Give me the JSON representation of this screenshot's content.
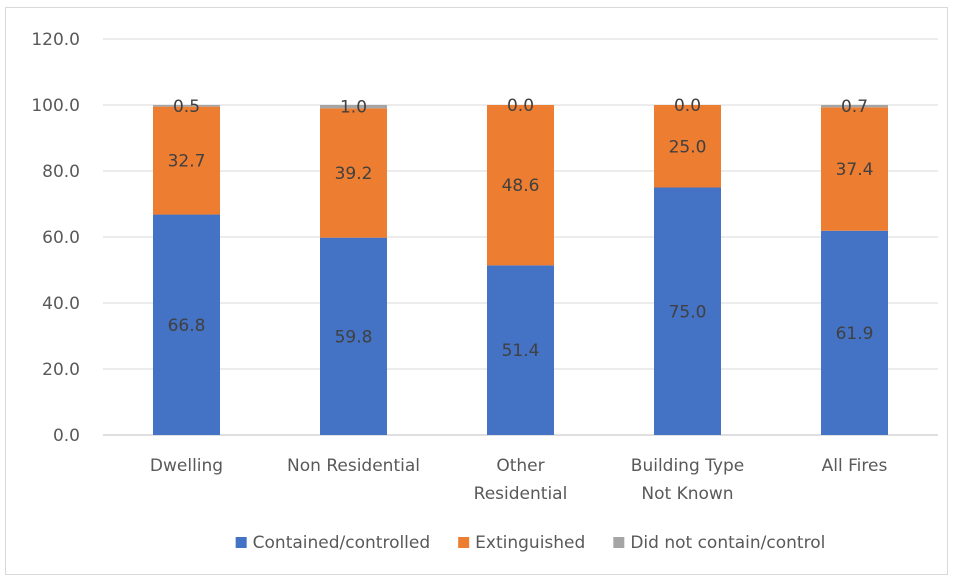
{
  "chart_data": {
    "type": "bar",
    "stacked": true,
    "categories": [
      [
        "Dwelling"
      ],
      [
        "Non Residential"
      ],
      [
        "Other",
        "Residential"
      ],
      [
        "Building Type",
        "Not Known"
      ],
      [
        "All Fires"
      ]
    ],
    "series": [
      {
        "name": "Contained/controlled",
        "color": "#4472c4",
        "values": [
          66.8,
          59.8,
          51.4,
          75.0,
          61.9
        ]
      },
      {
        "name": "Extinguished",
        "color": "#ed7d31",
        "values": [
          32.7,
          39.2,
          48.6,
          25.0,
          37.4
        ]
      },
      {
        "name": "Did not contain/control",
        "color": "#a5a5a5",
        "values": [
          0.5,
          1.0,
          0.0,
          0.0,
          0.7
        ]
      }
    ],
    "y_ticks": [
      "0.0",
      "20.0",
      "40.0",
      "60.0",
      "80.0",
      "100.0",
      "120.0"
    ],
    "ylim": [
      0,
      120
    ],
    "grid": true,
    "legend_position": "bottom",
    "title": "",
    "xlabel": "",
    "ylabel": ""
  }
}
